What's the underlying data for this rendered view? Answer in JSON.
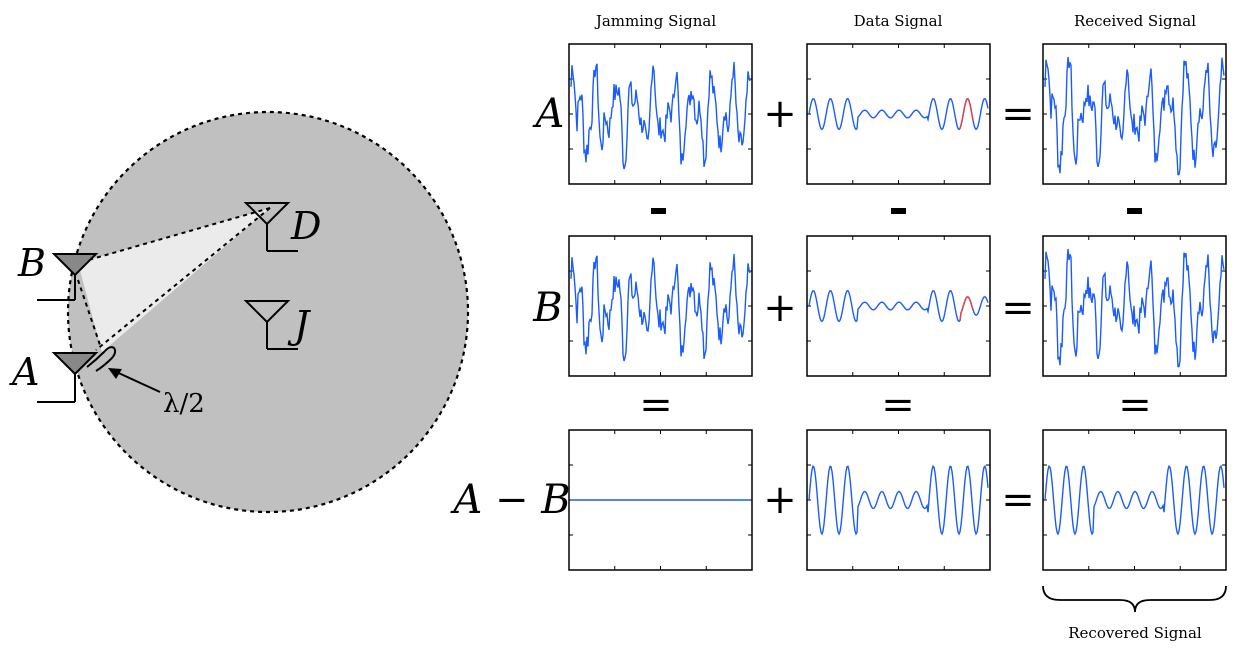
{
  "antenna_diagram": {
    "labels": {
      "B": "B",
      "A": "A",
      "D": "D",
      "J": "J",
      "spacing": "λ/2"
    },
    "colors": {
      "region_fill": "#c0c0c0",
      "beam_fill": "#e8e8e8",
      "antenna_fill": "#888888"
    }
  },
  "signal_grid": {
    "column_headers": [
      "Jamming Signal",
      "Data Signal",
      "Received Signal"
    ],
    "row_labels": [
      "A",
      "B",
      "A − B"
    ],
    "operators": {
      "plus": "+",
      "equals": "=",
      "minus": "-"
    },
    "footer": "Recovered Signal",
    "colors": {
      "trace": "#1a5cff",
      "highlight": "#e8403c",
      "frame": "#000000"
    }
  }
}
